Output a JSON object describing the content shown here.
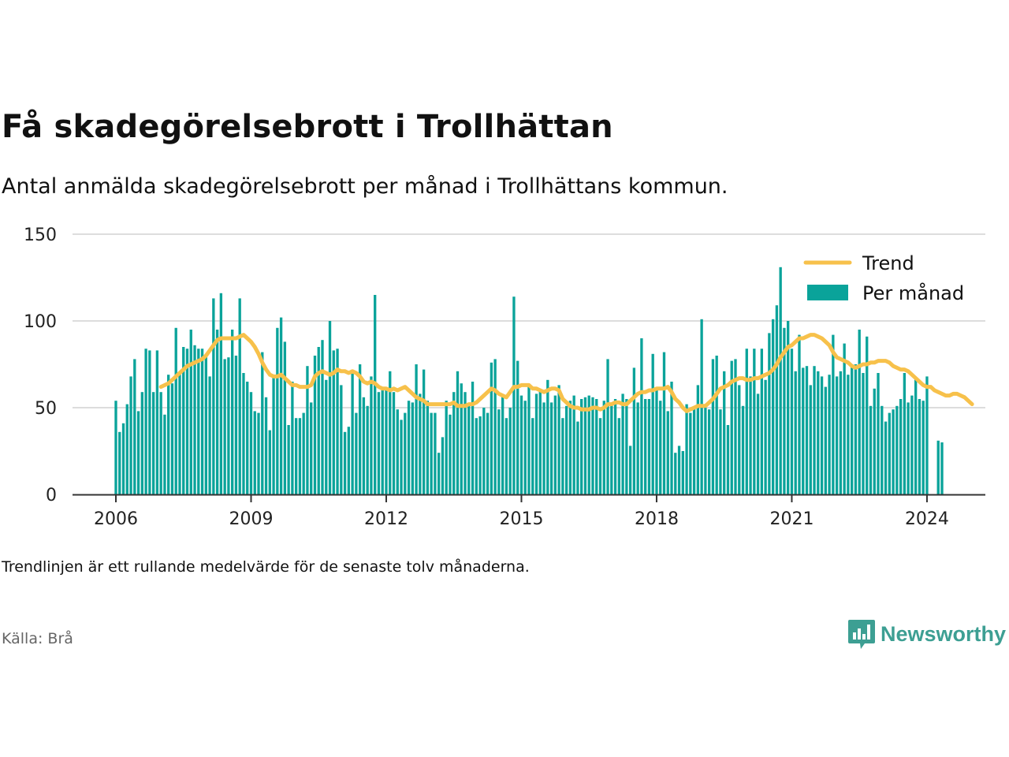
{
  "title": "Få skadegörelsebrott i Trollhättan",
  "subtitle": "Antal anmälda skadegörelsebrott per månad i Trollhättans kommun.",
  "note": "Trendlinjen är ett rullande medelvärde för de senaste tolv månaderna.",
  "source": "Källa: Brå",
  "brand": {
    "name": "Newsworthy",
    "icon": "newsworthy-logo-icon"
  },
  "colors": {
    "bars": "#0aa39a",
    "trend": "#f7c14b",
    "grid": "#dddddd",
    "axis": "#333333",
    "brand": "#3d9f93"
  },
  "chart_data": {
    "type": "bar",
    "x_start": "2006-01",
    "x_end": "2024-01",
    "x_unit": "month",
    "xticks": [
      "2006",
      "2009",
      "2012",
      "2015",
      "2018",
      "2021",
      "2024"
    ],
    "yticks": [
      "0",
      "50",
      "100",
      "150"
    ],
    "ylim": [
      0,
      150
    ],
    "grid": true,
    "legend_position": "top-right",
    "series": [
      {
        "name": "Per månad",
        "type": "bar",
        "values": [
          54,
          36,
          41,
          52,
          68,
          78,
          48,
          59,
          84,
          83,
          59,
          83,
          59,
          46,
          69,
          64,
          96,
          70,
          85,
          84,
          95,
          86,
          84,
          84,
          80,
          68,
          113,
          95,
          116,
          78,
          79,
          95,
          80,
          113,
          70,
          65,
          59,
          48,
          47,
          82,
          56,
          37,
          69,
          96,
          102,
          88,
          40,
          65,
          44,
          44,
          47,
          74,
          53,
          80,
          85,
          89,
          66,
          100,
          83,
          84,
          63,
          36,
          39,
          70,
          47,
          75,
          56,
          51,
          68,
          115,
          59,
          60,
          61,
          71,
          59,
          49,
          43,
          47,
          54,
          53,
          75,
          58,
          72,
          54,
          47,
          47,
          24,
          33,
          54,
          46,
          59,
          71,
          64,
          59,
          51,
          65,
          44,
          45,
          50,
          47,
          76,
          78,
          49,
          57,
          44,
          50,
          114,
          77,
          57,
          54,
          63,
          44,
          58,
          60,
          53,
          66,
          53,
          57,
          63,
          44,
          51,
          54,
          57,
          42,
          55,
          56,
          57,
          56,
          55,
          44,
          54,
          78,
          52,
          55,
          44,
          58,
          55,
          28,
          73,
          53,
          90,
          55,
          55,
          81,
          60,
          54,
          82,
          48,
          65,
          24,
          28,
          25,
          52,
          47,
          50,
          63,
          101,
          50,
          49,
          78,
          80,
          49,
          71,
          40,
          77,
          78,
          63,
          51,
          84,
          68,
          84,
          58,
          84,
          66,
          93,
          101,
          109,
          131,
          96,
          100,
          84,
          71,
          92,
          73,
          74,
          63,
          74,
          71,
          68,
          62,
          69,
          92,
          68,
          71,
          87,
          69,
          75,
          75,
          95,
          70,
          91,
          51,
          61,
          70,
          51,
          42,
          47,
          49,
          51,
          55,
          70,
          53,
          57,
          67,
          55,
          54,
          68,
          0,
          0,
          31,
          30
        ]
      },
      {
        "name": "Trend",
        "type": "line",
        "start_index": 12,
        "values": [
          62,
          63,
          64,
          66,
          68,
          70,
          72,
          74,
          75,
          76,
          77,
          78,
          80,
          83,
          86,
          89,
          90,
          90,
          90,
          90,
          90,
          91,
          92,
          90,
          88,
          85,
          81,
          76,
          72,
          69,
          68,
          68,
          69,
          67,
          65,
          63,
          63,
          62,
          62,
          62,
          63,
          68,
          70,
          71,
          70,
          69,
          70,
          72,
          71,
          71,
          70,
          71,
          70,
          68,
          65,
          64,
          65,
          64,
          62,
          61,
          61,
          60,
          61,
          60,
          61,
          62,
          60,
          58,
          56,
          55,
          54,
          52,
          52,
          52,
          52,
          52,
          52,
          52,
          53,
          51,
          51,
          51,
          52,
          52,
          53,
          55,
          57,
          59,
          61,
          60,
          58,
          57,
          56,
          59,
          62,
          62,
          63,
          63,
          63,
          61,
          61,
          60,
          59,
          60,
          61,
          61,
          60,
          55,
          53,
          51,
          50,
          50,
          49,
          49,
          49,
          50,
          50,
          49,
          50,
          52,
          52,
          53,
          53,
          52,
          52,
          54,
          56,
          58,
          59,
          59,
          60,
          60,
          61,
          61,
          61,
          62,
          59,
          55,
          53,
          50,
          48,
          49,
          50,
          51,
          51,
          51,
          53,
          55,
          58,
          61,
          62,
          63,
          65,
          66,
          67,
          67,
          66,
          66,
          67,
          67,
          68,
          69,
          70,
          72,
          75,
          79,
          82,
          85,
          86,
          88,
          90,
          90,
          91,
          92,
          92,
          91,
          90,
          88,
          86,
          82,
          79,
          78,
          77,
          76,
          74,
          73,
          74,
          75,
          75,
          76,
          76,
          77,
          77,
          77,
          76,
          74,
          73,
          72,
          72,
          71,
          69,
          67,
          65,
          63,
          62,
          62,
          60,
          59,
          58,
          57,
          57,
          58,
          58,
          57,
          56,
          54,
          52
        ]
      }
    ]
  }
}
